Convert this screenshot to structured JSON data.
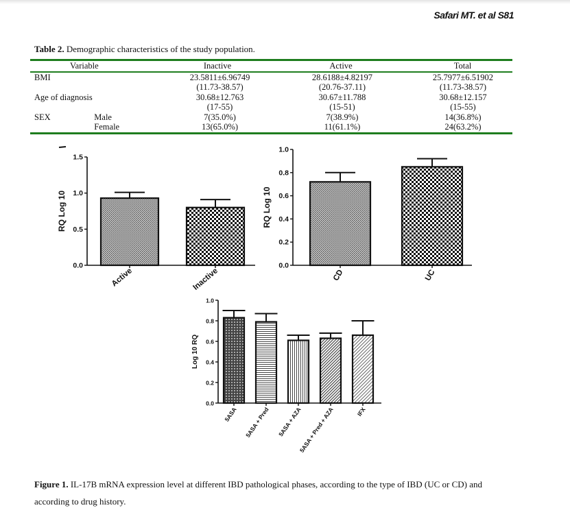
{
  "header": {
    "running_head": "Safari MT. et al S81"
  },
  "table": {
    "caption_label": "Table 2.",
    "caption_text": " Demographic characteristics of the study population.",
    "columns": [
      "Variable",
      "Inactive",
      "Active",
      "Total"
    ],
    "rows": [
      {
        "variable": "BMI",
        "sub": "",
        "inactive": "23.5811±6.96749",
        "active": "28.6188±4.82197",
        "total": "25.7977±6.51902"
      },
      {
        "variable": "",
        "sub": "",
        "inactive": "(11.73-38.57)",
        "active": "(20.76-37.11)",
        "total": "(11.73-38.57)"
      },
      {
        "variable": "Age of diagnosis",
        "sub": "",
        "inactive": "30.68±12.763",
        "active": "30.67±11.788",
        "total": "30.68±12.157"
      },
      {
        "variable": "",
        "sub": "",
        "inactive": "(17-55)",
        "active": "(15-51)",
        "total": "(15-55)"
      },
      {
        "variable": "SEX",
        "sub": "Male",
        "inactive": "7(35.0%)",
        "active": "7(38.9%)",
        "total": "14(36.8%)"
      },
      {
        "variable": "",
        "sub": "Female",
        "inactive": "13(65.0%)",
        "active": "11(61.1%)",
        "total": "24(63.2%)"
      }
    ]
  },
  "chart_data": [
    {
      "type": "bar",
      "title": "",
      "xlabel": "",
      "ylabel": "RQ Log 10",
      "categories": [
        "Active",
        "Inactive"
      ],
      "values": [
        0.93,
        0.8
      ],
      "errors": [
        0.08,
        0.11
      ],
      "ylim": [
        0,
        1.5
      ],
      "yticks": [
        "0.0",
        "0.5",
        "1.0",
        "1.5"
      ],
      "ytick_values": [
        0,
        0.5,
        1.0,
        1.5
      ],
      "patterns": [
        "fine-dots",
        "checker"
      ],
      "grid": false
    },
    {
      "type": "bar",
      "title": "",
      "xlabel": "",
      "ylabel": "RQ Log 10",
      "categories": [
        "CD",
        "UC"
      ],
      "values": [
        0.72,
        0.85
      ],
      "errors": [
        0.08,
        0.07
      ],
      "ylim": [
        0,
        1.0
      ],
      "yticks": [
        "0.0",
        "0.2",
        "0.4",
        "0.6",
        "0.8",
        "1.0"
      ],
      "ytick_values": [
        0,
        0.2,
        0.4,
        0.6,
        0.8,
        1.0
      ],
      "patterns": [
        "fine-dots",
        "checker"
      ],
      "grid": false
    },
    {
      "type": "bar",
      "title": "",
      "xlabel": "",
      "ylabel": "Log 10 RQ",
      "categories": [
        "5ASA",
        "5ASA + Pred",
        "5ASA + AZA",
        "5ASA + Pred + AZA",
        "IFX"
      ],
      "values": [
        0.83,
        0.79,
        0.61,
        0.63,
        0.66
      ],
      "errors": [
        0.07,
        0.08,
        0.05,
        0.05,
        0.14
      ],
      "ylim": [
        0,
        1.0
      ],
      "yticks": [
        "0.0",
        "0.2",
        "0.4",
        "0.6",
        "0.8",
        "1.0"
      ],
      "ytick_values": [
        0,
        0.2,
        0.4,
        0.6,
        0.8,
        1.0
      ],
      "patterns": [
        "dense-dots",
        "horizontal",
        "vertical",
        "diagonal",
        "diagonal-light"
      ],
      "grid": false
    }
  ],
  "figure_caption": {
    "label": "Figure 1.",
    "text": " IL-17B mRNA expression level at different IBD pathological phases, according to the type of IBD (UC or CD) and according to drug history."
  }
}
